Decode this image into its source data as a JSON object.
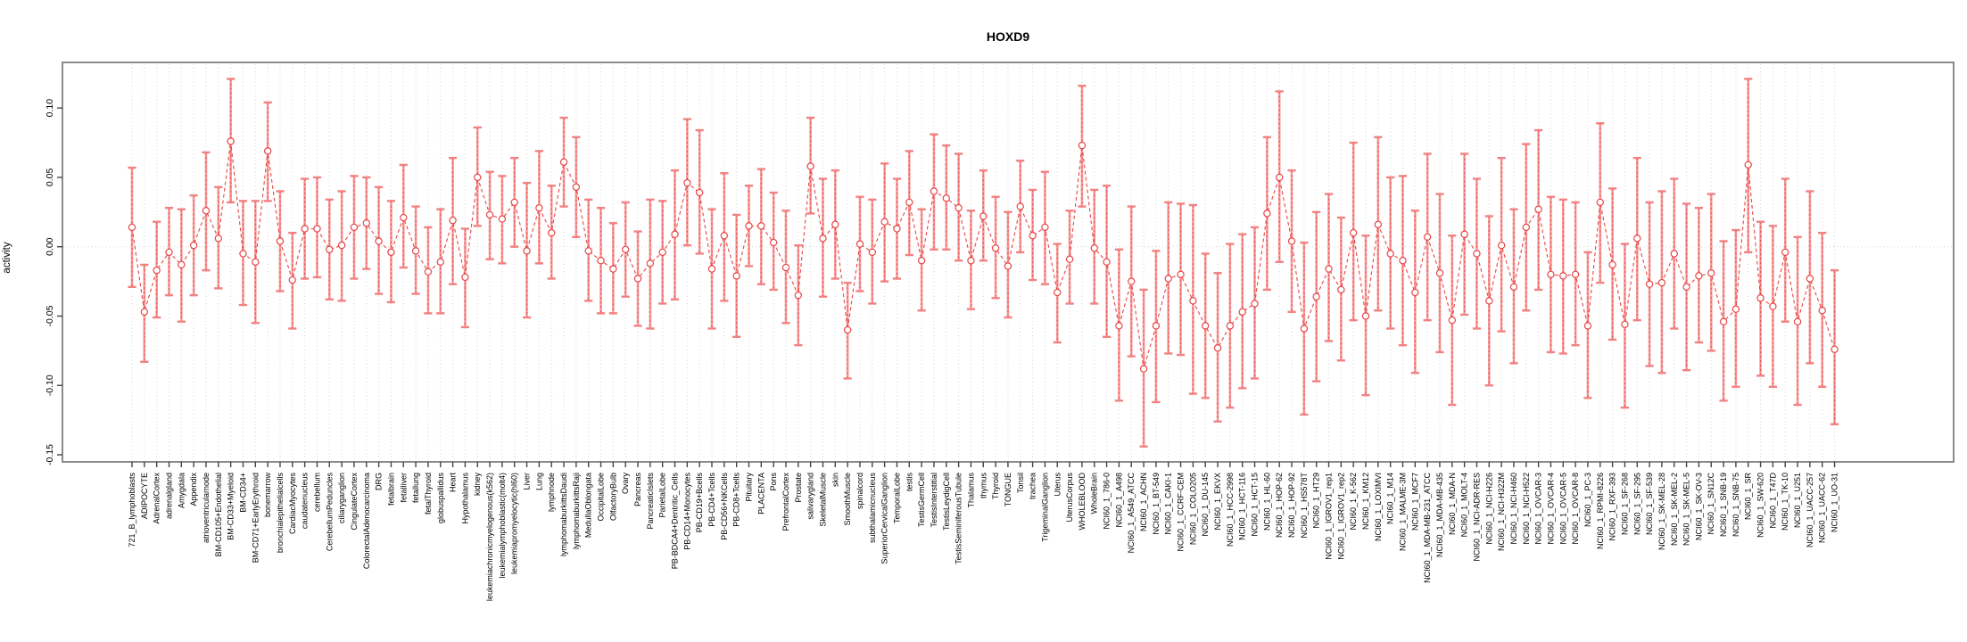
{
  "chart_data": {
    "type": "line",
    "title": "HOXD9",
    "ylabel": "activity",
    "xlabel": "",
    "ylim": [
      -0.155,
      0.133
    ],
    "yticks": [
      0.1,
      0.05,
      0.0,
      -0.05,
      -0.1,
      -0.15
    ],
    "grid": "vertical dotted line per category; dotted horizontal line at y=0",
    "legend_position": "none",
    "error_bars": true,
    "marker": "open-circle",
    "line_style": "dashed",
    "colors": {
      "point": "#e84545",
      "line": "#e84545",
      "error_bar": "#f79a9a",
      "error_cap": "#f28181",
      "grid": "#d6d6d6",
      "axis": "#6e6e6e",
      "tick": "#444444",
      "text": "#000000",
      "background": "#ffffff"
    },
    "categories": [
      "721_B_lymphoblasts",
      "ADIPOCYTE",
      "AdrenalCortex",
      "adrenalgland",
      "Amygdala",
      "Appendix",
      "atrioventricularnode",
      "BM-CD105+Endothelial",
      "BM-CD33+Myeloid",
      "BM-CD34+",
      "BM-CD71+EarlyErythroid",
      "bonemarrow",
      "bronchialepithelialcells",
      "CardiacMyocytes",
      "caudatenucleus",
      "cerebellum",
      "CerebellumPeduncles",
      "ciliaryganglion",
      "CingulateCortex",
      "ColorectalAdenocarcinoma",
      "DRG",
      "fetalbrain",
      "fetalliver",
      "fetallung",
      "fetalThyroid",
      "globuspallidus",
      "Heart",
      "Hypothalamus",
      "kidney",
      "leukemiachronicmyelogenous(k562)",
      "leukemialymphoblastic(molt4)",
      "leukemiapromyelocytic(hl60)",
      "Liver",
      "Lung",
      "lymphnode",
      "lymphomaburkittsDaudi",
      "lymphomaburkittsRaji",
      "MedullaOblongata",
      "OccipitalLobe",
      "OlfactoryBulb",
      "Ovary",
      "Pancreas",
      "PancreaticIslets",
      "ParietalLobe",
      "PB-BDCA4+Dentritic_Cells",
      "PB-CD14+Monocytes",
      "PB-CD19+Bcells",
      "PB-CD4+Tcells",
      "PB-CD56+NKCells",
      "PB-CD8+Tcells",
      "Pituitary",
      "PLACENTA",
      "Pons",
      "PrefrontalCortex",
      "Prostate",
      "salivarygland",
      "SkeletalMuscle",
      "skin",
      "SmoothMuscle",
      "spinalcord",
      "subthalamicnucleus",
      "SuperiorCervicalGanglion",
      "TemporalLobe",
      "testis",
      "TestisGermCell",
      "TestisInterstitial",
      "TestisLeydigCell",
      "TestisSeminiferousTubule",
      "Thalamus",
      "thymus",
      "Thyroid",
      "TONGUE",
      "Tonsil",
      "trachea",
      "TrigeminalGanglion",
      "Uterus",
      "UterusCorpus",
      "WHOLEBLOOD",
      "WholeBrain",
      "NCI60_1_786-0",
      "NCI60_1_A498",
      "NCI60_1_A549_ATCC",
      "NCI60_1_ACHN",
      "NCI60_1_BT-549",
      "NCI60_1_CAKI-1",
      "NCI60_1_CCRF-CEM",
      "NCI60_1_COLO205",
      "NCI60_1_DU-145",
      "NCI60_1_EKVX",
      "NCI60_1_HCC-2998",
      "NCI60_1_HCT-116",
      "NCI60_1_HCT-15",
      "NCI60_1_HL-60",
      "NCI60_1_HOP-62",
      "NCI60_1_HOP-92",
      "NCI60_1_HS578T",
      "NCI60_1_HT29",
      "NCI60_1_IGROV1_rep1",
      "NCI60_1_IGROV1_rep2",
      "NCI60_1_K-562",
      "NCI60_1_KM12",
      "NCI60_1_LOXIMVI",
      "NCI60_1_M14",
      "NCI60_1_MALME-3M",
      "NCI60_1_MCF7",
      "NCI60_1_MDA-MB-231_ATCC",
      "NCI60_1_MDA-MB-435",
      "NCI60_1_MDA-N",
      "NCI60_1_MOLT-4",
      "NCI60_1_NCI-ADR-RES",
      "NCI60_1_NCI-H226",
      "NCI60_1_NCI-H322M",
      "NCI60_1_NCI-H460",
      "NCI60_1_NCI-H522",
      "NCI60_1_OVCAR-3",
      "NCI60_1_OVCAR-4",
      "NCI60_1_OVCAR-5",
      "NCI60_1_OVCAR-8",
      "NCI60_1_PC-3",
      "NCI60_1_RPMI-8226",
      "NCI60_1_RXF-393",
      "NCI60_1_SF-268",
      "NCI60_1_SF-295",
      "NCI60_1_SF-539",
      "NCI60_1_SK-MEL-28",
      "NCI60_1_SK-MEL-2",
      "NCI60_1_SK-MEL-5",
      "NCI60_1_SK-OV-3",
      "NCI60_1_SN12C",
      "NCI60_1_SNB-19",
      "NCI60_1_SNB-75",
      "NCI60_1_SR",
      "NCI60_1_SW-620",
      "NCI60_1_T47D",
      "NCI60_1_TK-10",
      "NCI60_1_U251",
      "NCI60_1_UACC-257",
      "NCI60_1_UACC-62",
      "NCI60_1_UO-31"
    ],
    "series": [
      {
        "name": "activity",
        "values": [
          0.014,
          -0.047,
          -0.017,
          -0.004,
          -0.013,
          0.001,
          0.026,
          0.006,
          0.076,
          -0.005,
          -0.011,
          0.069,
          0.004,
          -0.024,
          0.013,
          0.013,
          -0.002,
          0.001,
          0.014,
          0.017,
          0.004,
          -0.004,
          0.021,
          -0.003,
          -0.018,
          -0.011,
          0.019,
          -0.022,
          0.05,
          0.023,
          0.02,
          0.032,
          -0.003,
          0.028,
          0.01,
          0.061,
          0.043,
          -0.003,
          -0.01,
          -0.016,
          -0.002,
          -0.023,
          -0.012,
          -0.004,
          0.009,
          0.046,
          0.039,
          -0.016,
          0.008,
          -0.021,
          0.015,
          0.015,
          0.003,
          -0.015,
          -0.035,
          0.058,
          0.006,
          0.016,
          -0.06,
          0.002,
          -0.004,
          0.018,
          0.013,
          0.032,
          -0.01,
          0.04,
          0.035,
          0.028,
          -0.01,
          0.022,
          -0.001,
          -0.014,
          0.029,
          0.008,
          0.014,
          -0.033,
          -0.009,
          0.073,
          -0.001,
          -0.011,
          -0.057,
          -0.025,
          -0.088,
          -0.057,
          -0.023,
          -0.02,
          -0.039,
          -0.057,
          -0.073,
          -0.057,
          -0.047,
          -0.041,
          0.024,
          0.05,
          0.004,
          -0.059,
          -0.036,
          -0.016,
          -0.031,
          0.01,
          -0.05,
          0.016,
          -0.005,
          -0.01,
          -0.033,
          0.007,
          -0.019,
          -0.053,
          0.009,
          -0.005,
          -0.039,
          0.001,
          -0.029,
          0.014,
          0.027,
          -0.02,
          -0.021,
          -0.02,
          -0.057,
          0.032,
          -0.013,
          -0.056,
          0.006,
          -0.027,
          -0.026,
          -0.005,
          -0.029,
          -0.021,
          -0.019,
          -0.054,
          -0.045,
          0.059,
          -0.037,
          -0.043,
          -0.004,
          -0.054,
          -0.023,
          -0.046,
          -0.074
        ],
        "lower": [
          -0.029,
          -0.083,
          -0.051,
          -0.035,
          -0.054,
          -0.035,
          -0.017,
          -0.03,
          0.032,
          -0.042,
          -0.055,
          0.033,
          -0.032,
          -0.059,
          -0.023,
          -0.022,
          -0.038,
          -0.039,
          -0.023,
          -0.016,
          -0.034,
          -0.04,
          -0.015,
          -0.034,
          -0.048,
          -0.048,
          -0.027,
          -0.058,
          0.015,
          -0.009,
          -0.012,
          0.0,
          -0.051,
          -0.012,
          -0.023,
          0.029,
          0.007,
          -0.039,
          -0.048,
          -0.048,
          -0.036,
          -0.057,
          -0.059,
          -0.041,
          -0.038,
          0.001,
          -0.005,
          -0.059,
          -0.039,
          -0.065,
          -0.014,
          -0.027,
          -0.031,
          -0.055,
          -0.071,
          0.024,
          -0.036,
          -0.023,
          -0.095,
          -0.032,
          -0.041,
          -0.025,
          -0.023,
          -0.006,
          -0.046,
          -0.002,
          -0.002,
          -0.01,
          -0.045,
          -0.01,
          -0.037,
          -0.051,
          -0.004,
          -0.024,
          -0.027,
          -0.069,
          -0.041,
          0.029,
          -0.041,
          -0.065,
          -0.111,
          -0.079,
          -0.144,
          -0.112,
          -0.077,
          -0.078,
          -0.106,
          -0.109,
          -0.126,
          -0.116,
          -0.102,
          -0.095,
          -0.031,
          -0.011,
          -0.047,
          -0.121,
          -0.097,
          -0.068,
          -0.082,
          -0.053,
          -0.107,
          -0.046,
          -0.059,
          -0.071,
          -0.091,
          -0.053,
          -0.076,
          -0.114,
          -0.049,
          -0.059,
          -0.1,
          -0.061,
          -0.084,
          -0.046,
          -0.031,
          -0.076,
          -0.077,
          -0.071,
          -0.109,
          -0.026,
          -0.067,
          -0.116,
          -0.053,
          -0.086,
          -0.091,
          -0.059,
          -0.089,
          -0.069,
          -0.075,
          -0.111,
          -0.101,
          -0.004,
          -0.093,
          -0.101,
          -0.054,
          -0.114,
          -0.084,
          -0.101,
          -0.128
        ],
        "upper": [
          0.057,
          -0.013,
          0.018,
          0.028,
          0.027,
          0.037,
          0.068,
          0.043,
          0.121,
          0.033,
          0.033,
          0.104,
          0.04,
          0.01,
          0.049,
          0.05,
          0.034,
          0.04,
          0.051,
          0.05,
          0.043,
          0.033,
          0.059,
          0.029,
          0.014,
          0.027,
          0.064,
          0.013,
          0.086,
          0.054,
          0.051,
          0.064,
          0.046,
          0.069,
          0.044,
          0.093,
          0.079,
          0.034,
          0.028,
          0.017,
          0.032,
          0.011,
          0.034,
          0.033,
          0.055,
          0.092,
          0.084,
          0.027,
          0.053,
          0.023,
          0.044,
          0.056,
          0.039,
          0.026,
          0.001,
          0.093,
          0.049,
          0.055,
          -0.026,
          0.036,
          0.034,
          0.06,
          0.049,
          0.069,
          0.027,
          0.081,
          0.073,
          0.067,
          0.026,
          0.055,
          0.036,
          0.025,
          0.062,
          0.041,
          0.054,
          0.002,
          0.026,
          0.116,
          0.041,
          0.044,
          -0.002,
          0.029,
          -0.031,
          -0.003,
          0.032,
          0.031,
          0.03,
          -0.005,
          -0.019,
          0.002,
          0.009,
          0.014,
          0.079,
          0.112,
          0.055,
          0.003,
          0.025,
          0.038,
          0.021,
          0.075,
          0.008,
          0.079,
          0.05,
          0.051,
          0.026,
          0.067,
          0.038,
          0.008,
          0.067,
          0.049,
          0.022,
          0.064,
          0.027,
          0.074,
          0.084,
          0.036,
          0.034,
          0.032,
          -0.004,
          0.089,
          0.042,
          0.002,
          0.064,
          0.032,
          0.04,
          0.049,
          0.031,
          0.028,
          0.038,
          0.004,
          0.012,
          0.121,
          0.018,
          0.015,
          0.049,
          0.007,
          0.04,
          0.01,
          -0.017
        ]
      }
    ]
  }
}
